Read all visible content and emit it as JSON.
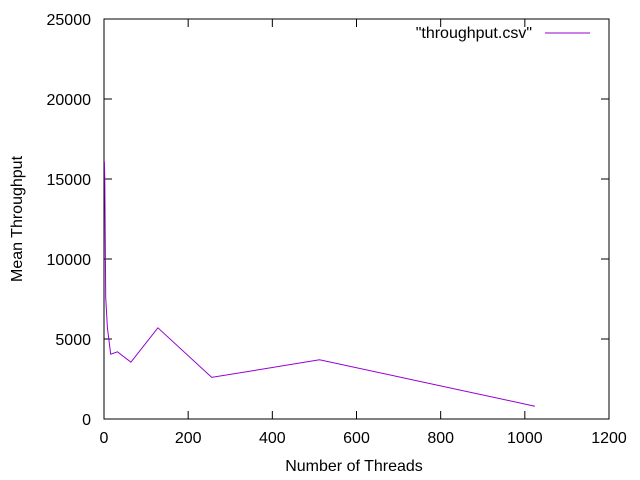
{
  "chart_data": {
    "type": "line",
    "title": "",
    "xlabel": "Number of Threads",
    "ylabel": "Mean Throughput",
    "xlim": [
      0,
      1200
    ],
    "ylim": [
      0,
      25000
    ],
    "xticks": [
      0,
      200,
      400,
      600,
      800,
      1000,
      1200
    ],
    "yticks": [
      0,
      5000,
      10000,
      15000,
      20000,
      25000
    ],
    "grid": false,
    "legend_position": "top-right",
    "series": [
      {
        "name": "\"throughput.csv\"",
        "color": "#9400d3",
        "points": [
          [
            1,
            16100
          ],
          [
            2,
            14900
          ],
          [
            4,
            7600
          ],
          [
            8,
            5700
          ],
          [
            16,
            4050
          ],
          [
            32,
            4200
          ],
          [
            64,
            3550
          ],
          [
            128,
            5700
          ],
          [
            256,
            2600
          ],
          [
            512,
            3700
          ],
          [
            1024,
            800
          ]
        ]
      }
    ]
  }
}
